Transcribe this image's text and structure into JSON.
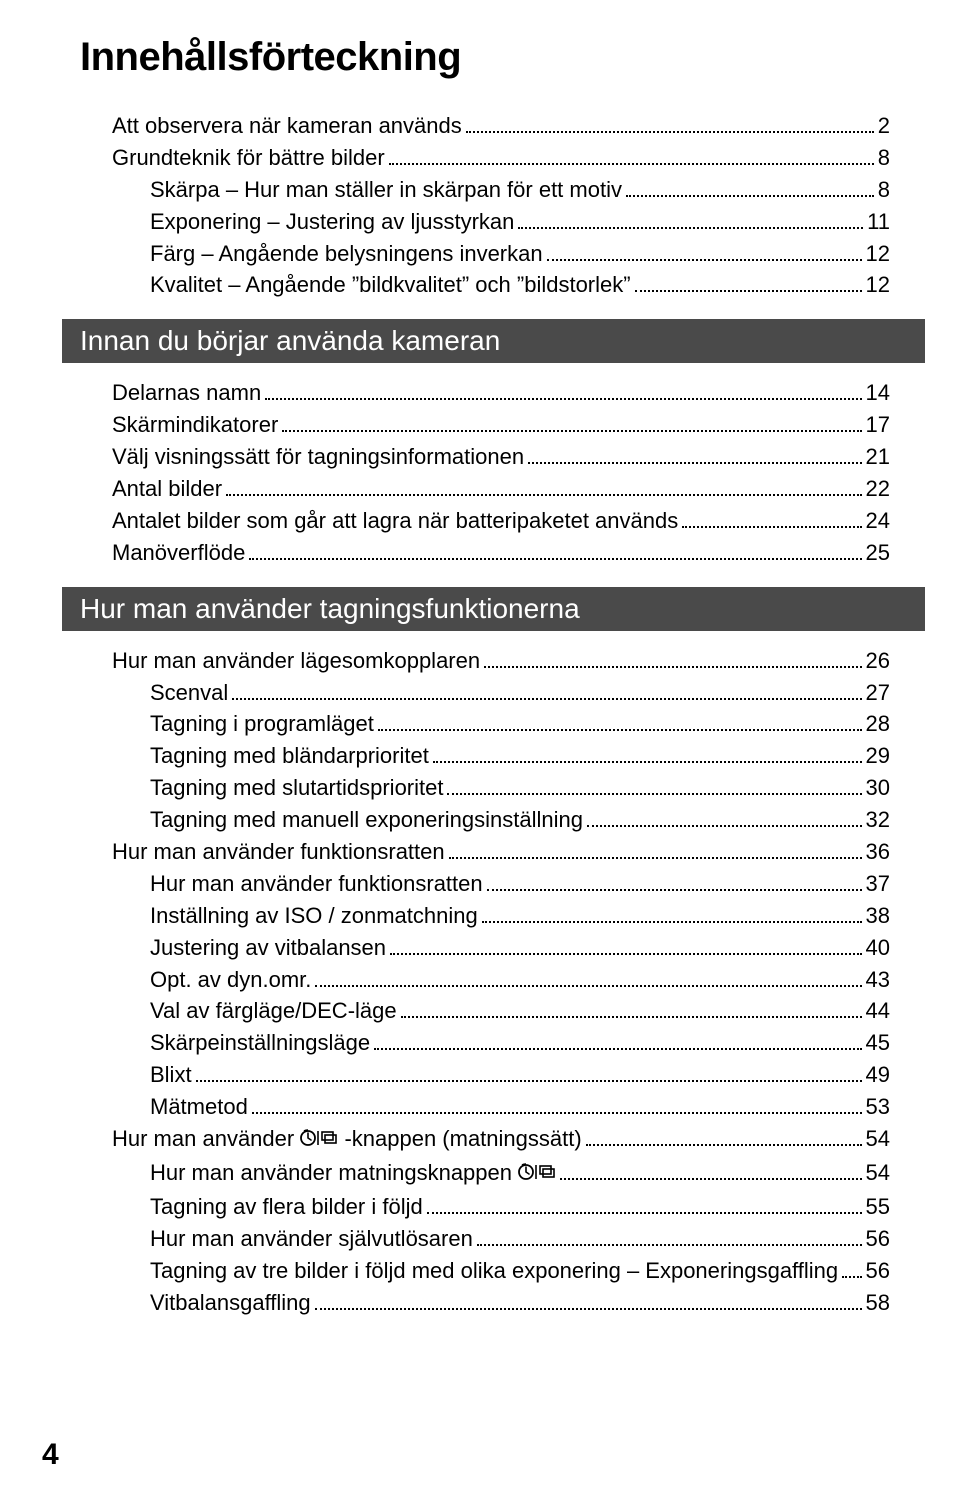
{
  "title": "Innehållsförteckning",
  "page_number": "4",
  "colors": {
    "heading_bg": "#4a4a4a",
    "heading_text": "#ffffff",
    "text": "#000000",
    "background": "#ffffff"
  },
  "typography": {
    "title_fontsize": 40,
    "heading_fontsize": 28,
    "entry_fontsize": 22
  },
  "sections": [
    {
      "heading": null,
      "entries": [
        {
          "label": "Att observera när kameran används",
          "page": "2",
          "level": 0
        },
        {
          "label": "Grundteknik för bättre bilder",
          "page": "8",
          "level": 0
        },
        {
          "label": "Skärpa – Hur man ställer in skärpan för ett motiv",
          "page": "8",
          "level": 1
        },
        {
          "label": "Exponering – Justering av ljusstyrkan",
          "page": "11",
          "level": 1
        },
        {
          "label": "Färg – Angående belysningens inverkan",
          "page": "12",
          "level": 1
        },
        {
          "label": "Kvalitet – Angående ”bildkvalitet” och ”bildstorlek”",
          "page": "12",
          "level": 1
        }
      ]
    },
    {
      "heading": "Innan du börjar använda kameran",
      "entries": [
        {
          "label": "Delarnas namn",
          "page": "14",
          "level": 0
        },
        {
          "label": "Skärmindikatorer",
          "page": "17",
          "level": 0
        },
        {
          "label": "Välj visningssätt för tagningsinformationen",
          "page": "21",
          "level": 0
        },
        {
          "label": "Antal bilder",
          "page": "22",
          "level": 0
        },
        {
          "label": "Antalet bilder som går att lagra när batteripaketet används",
          "page": "24",
          "level": 0
        },
        {
          "label": "Manöverflöde",
          "page": "25",
          "level": 0
        }
      ]
    },
    {
      "heading": "Hur man använder tagningsfunktionerna",
      "entries": [
        {
          "label": "Hur man använder lägesomkopplaren",
          "page": "26",
          "level": 0
        },
        {
          "label": "Scenval",
          "page": "27",
          "level": 1
        },
        {
          "label": "Tagning i programläget",
          "page": "28",
          "level": 1
        },
        {
          "label": "Tagning med bländarprioritet",
          "page": "29",
          "level": 1
        },
        {
          "label": "Tagning med slutartidsprioritet",
          "page": "30",
          "level": 1
        },
        {
          "label": "Tagning med manuell exponeringsinställning",
          "page": "32",
          "level": 1
        },
        {
          "label": "Hur man använder funktionsratten",
          "page": "36",
          "level": 0
        },
        {
          "label": "Hur man använder funktionsratten",
          "page": "37",
          "level": 1
        },
        {
          "label": "Inställning av ISO / zonmatchning",
          "page": "38",
          "level": 1
        },
        {
          "label": "Justering av vitbalansen",
          "page": "40",
          "level": 1
        },
        {
          "label": "Opt. av dyn.omr.",
          "page": "43",
          "level": 1
        },
        {
          "label": "Val av färgläge/DEC-läge",
          "page": "44",
          "level": 1
        },
        {
          "label": "Skärpeinställningsläge",
          "page": "45",
          "level": 1
        },
        {
          "label": "Blixt",
          "page": "49",
          "level": 1
        },
        {
          "label": "Mätmetod",
          "page": "53",
          "level": 1
        },
        {
          "label": "Hur man använder {ICON} -knappen (matningssätt)",
          "page": "54",
          "level": 0,
          "icon": true
        },
        {
          "label": "Hur man använder matningsknappen {ICON}",
          "page": "54",
          "level": 1,
          "icon": true
        },
        {
          "label": "Tagning av flera bilder i följd",
          "page": "55",
          "level": 1
        },
        {
          "label": "Hur man använder självutlösaren",
          "page": "56",
          "level": 1
        },
        {
          "label": "Tagning av tre bilder i följd med olika exponering – Exponeringsgaffling",
          "page": "56",
          "level": 1
        },
        {
          "label": "Vitbalansgaffling",
          "page": "58",
          "level": 1
        }
      ]
    }
  ]
}
